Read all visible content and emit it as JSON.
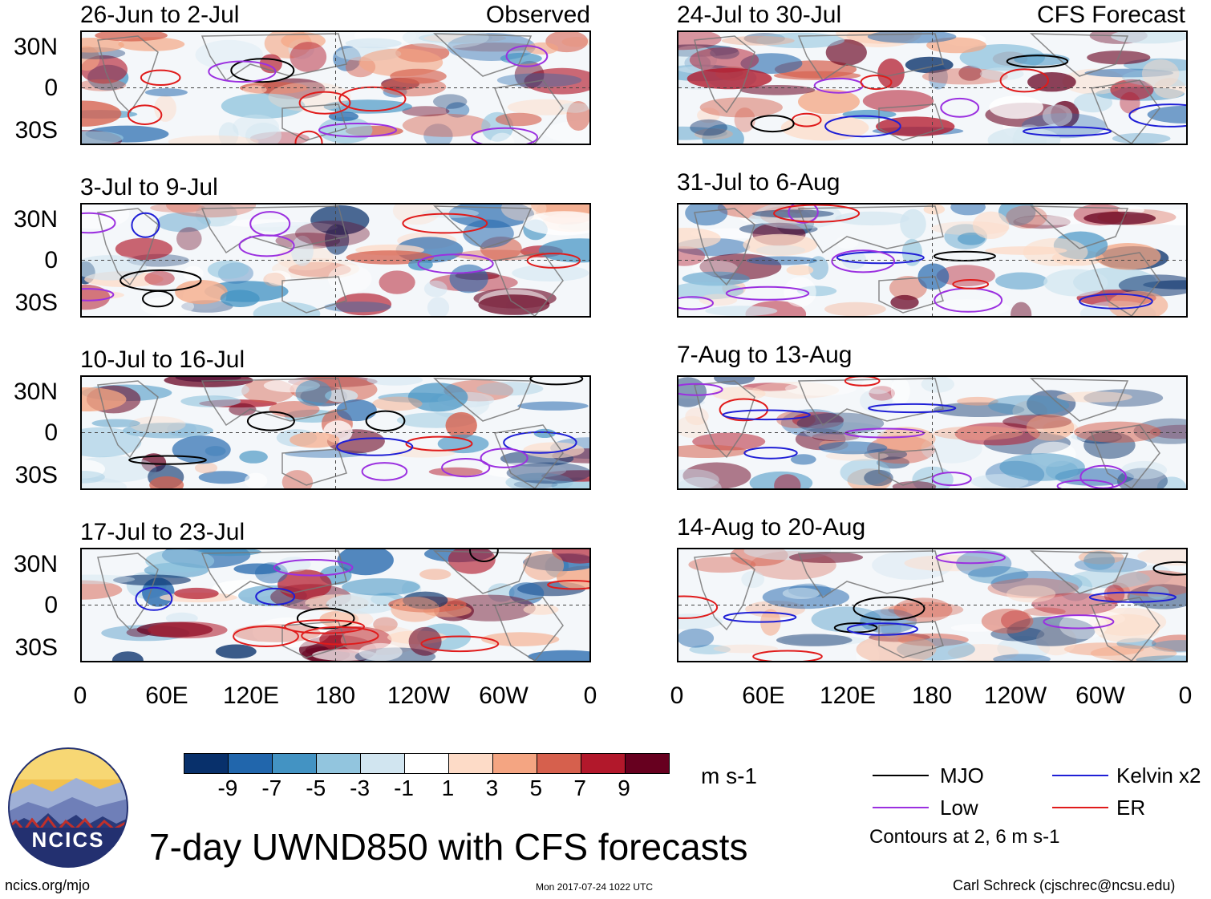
{
  "observed_label": "Observed",
  "forecast_label": "CFS Forecast",
  "panels": [
    {
      "title": "26-Jun to 2-Jul",
      "group": "observed"
    },
    {
      "title": "3-Jul to 9-Jul",
      "group": "observed"
    },
    {
      "title": "10-Jul to 16-Jul",
      "group": "observed"
    },
    {
      "title": "17-Jul to 23-Jul",
      "group": "observed"
    },
    {
      "title": "24-Jul to 30-Jul",
      "group": "forecast"
    },
    {
      "title": "31-Jul to 6-Aug",
      "group": "forecast"
    },
    {
      "title": "7-Aug to 13-Aug",
      "group": "forecast"
    },
    {
      "title": "14-Aug to 20-Aug",
      "group": "forecast"
    }
  ],
  "lat_labels": [
    "30N",
    "0",
    "30S"
  ],
  "lon_labels": [
    "0",
    "60E",
    "120E",
    "180",
    "120W",
    "60W",
    "0"
  ],
  "colorbar": {
    "colors": [
      "#08306b",
      "#2166ac",
      "#4393c3",
      "#92c5de",
      "#d1e5f0",
      "#ffffff",
      "#fddbc7",
      "#f4a582",
      "#d6604d",
      "#b2182b",
      "#67001f"
    ],
    "labels": [
      "-9",
      "-7",
      "-5",
      "-3",
      "-1",
      "1",
      "3",
      "5",
      "7",
      "9"
    ],
    "units": "m s-1"
  },
  "legend": {
    "items": [
      {
        "label": "MJO",
        "color": "#000000"
      },
      {
        "label": "Kelvin x2",
        "color": "#1f1fd6"
      },
      {
        "label": "Low",
        "color": "#9b30e0"
      },
      {
        "label": "ER",
        "color": "#e01b1b"
      }
    ],
    "note": "Contours at 2, 6 m s-1"
  },
  "main_title": "7-day UWND850 with CFS forecasts",
  "logo_text": "NCICS",
  "footer": {
    "url": "ncics.org/mjo",
    "timestamp": "Mon 2017-07-24 1022 UTC",
    "credit": "Carl Schreck (cjschrec@ncsu.edu)"
  }
}
